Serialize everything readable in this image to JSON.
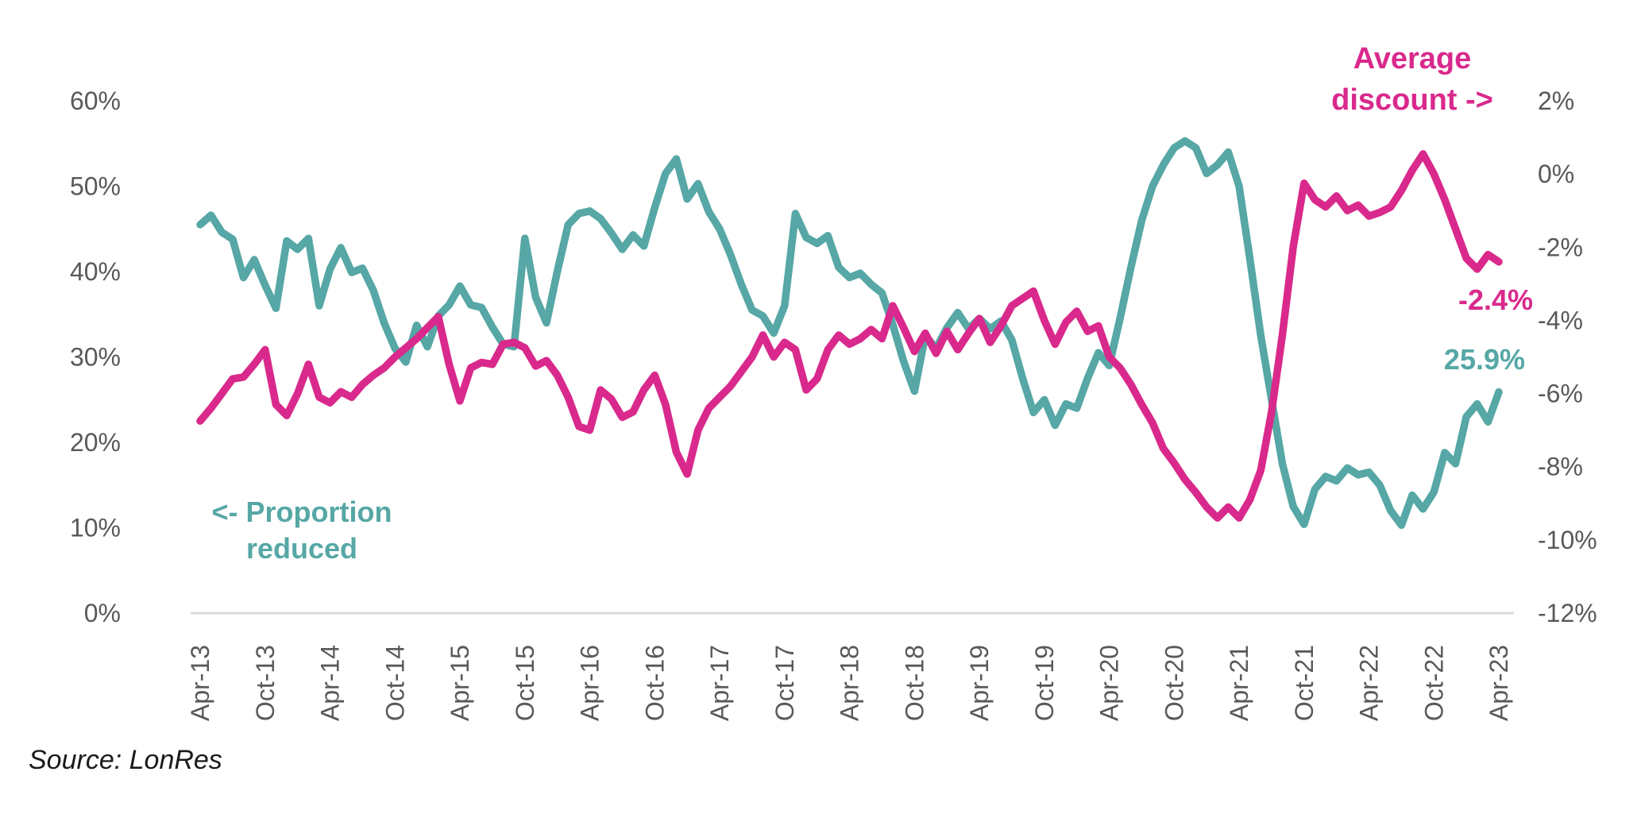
{
  "source": "Source: LonRes",
  "annotations": {
    "average_discount": {
      "line1": "Average",
      "line2": "discount ->"
    },
    "proportion_reduced": {
      "line1": "<- Proportion",
      "line2": "reduced"
    },
    "pink_end_value": "-2.4%",
    "teal_end_value": "25.9%"
  },
  "chart_data": {
    "type": "line",
    "title": "",
    "x_unit": "month",
    "x_start": "Apr-13",
    "x_end": "Apr-23",
    "x_tick_every_months": 6,
    "x_tick_labels": [
      "Apr-13",
      "Oct-13",
      "Apr-14",
      "Oct-14",
      "Apr-15",
      "Oct-15",
      "Apr-16",
      "Oct-16",
      "Apr-17",
      "Oct-17",
      "Apr-18",
      "Oct-18",
      "Apr-19",
      "Oct-19",
      "Apr-20",
      "Oct-20",
      "Apr-21",
      "Oct-21",
      "Apr-22",
      "Oct-22",
      "Apr-23"
    ],
    "grid": "off",
    "legend": "annotated-inline",
    "tick_label_color": "#595959",
    "axis_line_color": "#D9D9D9",
    "left_axis": {
      "min": 0,
      "max": 60,
      "tick_labels": [
        "60%",
        "50%",
        "40%",
        "30%",
        "20%",
        "10%",
        "0%"
      ]
    },
    "right_axis": {
      "min": -12,
      "max": 2,
      "tick_labels": [
        "2%",
        "0%",
        "-2%",
        "-4%",
        "-6%",
        "-8%",
        "-10%",
        "-12%"
      ]
    },
    "series": [
      {
        "name": "Proportion reduced",
        "axis": "left",
        "color": "#56A7A5",
        "end_label": "25.9%",
        "values": [
          45.5,
          46.6,
          44.6,
          43.8,
          39.3,
          41.4,
          38.4,
          35.7,
          43.6,
          42.6,
          43.9,
          36.0,
          40.3,
          42.8,
          39.9,
          40.4,
          37.8,
          34.0,
          31.0,
          29.4,
          33.7,
          31.2,
          34.8,
          36.1,
          38.3,
          36.1,
          35.8,
          33.5,
          31.5,
          31.2,
          43.9,
          37.0,
          34.0,
          40.0,
          45.5,
          46.8,
          47.1,
          46.2,
          44.5,
          42.6,
          44.3,
          43.0,
          47.5,
          51.5,
          53.2,
          48.5,
          50.3,
          47.0,
          45.0,
          42.0,
          38.5,
          35.5,
          34.8,
          32.8,
          36.0,
          46.8,
          44.0,
          43.3,
          44.2,
          40.5,
          39.3,
          39.8,
          38.5,
          37.5,
          33.8,
          29.5,
          26.0,
          32.5,
          31.0,
          33.4,
          35.2,
          33.3,
          34.5,
          33.3,
          34.2,
          32.0,
          27.5,
          23.5,
          25.0,
          22.0,
          24.5,
          24.0,
          27.5,
          30.5,
          29.0,
          34.5,
          40.5,
          46.0,
          50.0,
          52.5,
          54.5,
          55.3,
          54.5,
          51.5,
          52.5,
          54.0,
          50.0,
          41.5,
          32.5,
          25.0,
          17.5,
          12.5,
          10.4,
          14.5,
          16.0,
          15.5,
          17.0,
          16.2,
          16.5,
          15.0,
          12.0,
          10.3,
          13.8,
          12.2,
          14.2,
          18.8,
          17.5,
          23.0,
          24.5,
          22.4,
          25.9
        ]
      },
      {
        "name": "Average discount",
        "axis": "right",
        "color": "#D9298C",
        "end_label": "-2.4%",
        "values": [
          -6.75,
          -6.4,
          -6.0,
          -5.6,
          -5.55,
          -5.2,
          -4.8,
          -6.3,
          -6.6,
          -6.0,
          -5.2,
          -6.1,
          -6.25,
          -5.95,
          -6.1,
          -5.75,
          -5.5,
          -5.3,
          -5.0,
          -4.75,
          -4.5,
          -4.2,
          -3.9,
          -5.2,
          -6.2,
          -5.3,
          -5.15,
          -5.2,
          -4.65,
          -4.6,
          -4.75,
          -5.25,
          -5.1,
          -5.5,
          -6.1,
          -6.9,
          -7.0,
          -5.9,
          -6.15,
          -6.65,
          -6.5,
          -5.9,
          -5.5,
          -6.3,
          -7.6,
          -8.2,
          -7.0,
          -6.4,
          -6.1,
          -5.8,
          -5.4,
          -5.0,
          -4.4,
          -5.0,
          -4.6,
          -4.8,
          -5.9,
          -5.6,
          -4.8,
          -4.4,
          -4.65,
          -4.5,
          -4.25,
          -4.5,
          -3.6,
          -4.2,
          -4.85,
          -4.35,
          -4.9,
          -4.3,
          -4.8,
          -4.35,
          -3.95,
          -4.6,
          -4.15,
          -3.6,
          -3.4,
          -3.2,
          -4.0,
          -4.65,
          -4.05,
          -3.75,
          -4.3,
          -4.15,
          -5.0,
          -5.3,
          -5.75,
          -6.3,
          -6.8,
          -7.5,
          -7.9,
          -8.35,
          -8.7,
          -9.1,
          -9.4,
          -9.1,
          -9.4,
          -8.9,
          -8.1,
          -6.5,
          -4.4,
          -2.0,
          -0.25,
          -0.7,
          -0.9,
          -0.6,
          -1.0,
          -0.85,
          -1.15,
          -1.05,
          -0.9,
          -0.45,
          0.1,
          0.55,
          0.0,
          -0.7,
          -1.5,
          -2.3,
          -2.6,
          -2.2,
          -2.4
        ]
      }
    ]
  }
}
